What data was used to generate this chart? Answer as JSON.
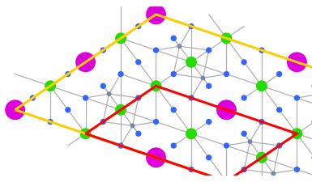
{
  "bg_color": "#ffffff",
  "figsize": [
    3.85,
    2.25
  ],
  "dpi": 100,
  "bond_color": "#b0b0b0",
  "bond_lw": 0.9,
  "atom_Cu": {
    "color": "#22dd00",
    "size": 100,
    "zorder": 5,
    "ec": "none"
  },
  "atom_F": {
    "color": "#3366ff",
    "size": 28,
    "zorder": 5,
    "ec": "none"
  },
  "atom_A": {
    "color": "#dd00dd",
    "size": 320,
    "zorder": 6,
    "ec": "none"
  },
  "atom_M": {
    "color": "#7788aa",
    "size": 18,
    "zorder": 4,
    "ec": "none"
  },
  "red_lw": 2.2,
  "red_color": "#ff0000",
  "yellow_lw": 2.2,
  "yellow_color": "#ffcc00",
  "a1x": 2.8,
  "a1y": -0.95,
  "a2x": 1.4,
  "a2y": 0.95,
  "display_xlim": [
    -0.3,
    5.9
  ],
  "display_ylim": [
    -1.3,
    2.05
  ]
}
